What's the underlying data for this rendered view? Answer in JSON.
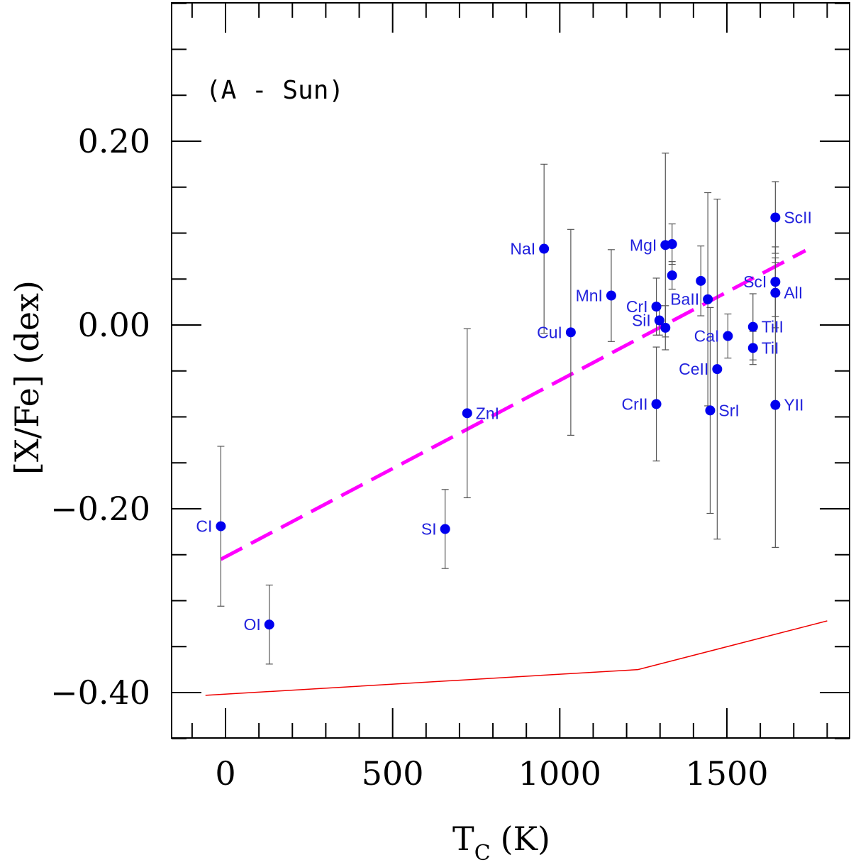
{
  "chart_data": {
    "type": "scatter",
    "annotation": "(A - Sun)",
    "xlabel_main": "T",
    "xlabel_sub": "C",
    "xlabel_unit": "(K)",
    "ylabel": "[X/Fe] (dex)",
    "xlim": [
      -110,
      1845
    ],
    "ylim": [
      -0.45,
      0.35
    ],
    "x_ticks": [
      0,
      500,
      1000,
      1500
    ],
    "x_tick_labels": [
      "0",
      "500",
      "1000",
      "1500"
    ],
    "y_ticks": [
      0.2,
      0.0,
      -0.2,
      -0.4
    ],
    "y_tick_labels": [
      "0.20",
      "0.00",
      "−0.20",
      "−0.40"
    ],
    "colors": {
      "points": "#0000ee",
      "errorbars": "#555555",
      "fit": "#ff00ff",
      "ref_line": "#ee0000",
      "labels": "#2222dd"
    },
    "points": [
      {
        "label": "CI",
        "x": -14,
        "y": -0.219,
        "err": 0.087,
        "label_side": "left"
      },
      {
        "label": "OI",
        "x": 131,
        "y": -0.326,
        "err": 0.043,
        "label_side": "left"
      },
      {
        "label": "SI",
        "x": 657,
        "y": -0.222,
        "err": 0.043,
        "label_side": "left"
      },
      {
        "label": "ZnI",
        "x": 723,
        "y": -0.096,
        "err": 0.092,
        "label_side": "right"
      },
      {
        "label": "NaI",
        "x": 953,
        "y": 0.083,
        "err": 0.092,
        "label_side": "left"
      },
      {
        "label": "CuI",
        "x": 1033,
        "y": -0.008,
        "err": 0.112,
        "label_side": "left"
      },
      {
        "label": "MnI",
        "x": 1154,
        "y": 0.032,
        "err": 0.05,
        "label_side": "left"
      },
      {
        "label": "CrI",
        "x": 1289,
        "y": 0.02,
        "err": 0.031,
        "label_side": "left"
      },
      {
        "label": "CrII",
        "x": 1289,
        "y": -0.086,
        "err": 0.062,
        "label_side": "left"
      },
      {
        "label": "SiI",
        "x": 1298,
        "y": 0.005,
        "err": 0.016,
        "label_side": "left"
      },
      {
        "label": "",
        "x": 1316,
        "y": -0.003,
        "err": 0.024,
        "label_side": "none"
      },
      {
        "label": "MgI",
        "x": 1316,
        "y": 0.087,
        "err": 0.1,
        "label_side": "left"
      },
      {
        "label": "",
        "x": 1336,
        "y": 0.088,
        "err": 0.022,
        "label_side": "none"
      },
      {
        "label": "",
        "x": 1336,
        "y": 0.054,
        "err": 0.015,
        "label_side": "none"
      },
      {
        "label": "",
        "x": 1422,
        "y": 0.048,
        "err": 0.038,
        "label_side": "none"
      },
      {
        "label": "BaII",
        "x": 1443,
        "y": 0.028,
        "err": 0.116,
        "label_side": "left"
      },
      {
        "label": "SrI",
        "x": 1450,
        "y": -0.093,
        "err": 0.112,
        "label_side": "right"
      },
      {
        "label": "CeII",
        "x": 1471,
        "y": -0.048,
        "err": 0.185,
        "label_side": "left"
      },
      {
        "label": "CaI",
        "x": 1503,
        "y": -0.012,
        "err": 0.024,
        "label_side": "left"
      },
      {
        "label": "TiII",
        "x": 1578,
        "y": -0.002,
        "err": 0.036,
        "label_side": "right"
      },
      {
        "label": "TiI",
        "x": 1578,
        "y": -0.025,
        "err": 0.018,
        "label_side": "right"
      },
      {
        "label": "ScI",
        "x": 1645,
        "y": 0.047,
        "err": 0.038,
        "label_side": "left"
      },
      {
        "label": "AlI",
        "x": 1645,
        "y": 0.035,
        "err": 0.038,
        "label_side": "right"
      },
      {
        "label": "ScII",
        "x": 1645,
        "y": 0.117,
        "err": 0.039,
        "label_side": "right"
      },
      {
        "label": "YII",
        "x": 1645,
        "y": -0.087,
        "err": 0.155,
        "label_side": "right"
      }
    ],
    "fit_line": {
      "x": [
        -14,
        1735
      ],
      "y": [
        -0.255,
        0.081
      ],
      "style": "dashed"
    },
    "reference_line": {
      "x": [
        -60,
        1234,
        1800
      ],
      "y": [
        -0.403,
        -0.375,
        -0.322
      ],
      "style": "solid"
    }
  }
}
